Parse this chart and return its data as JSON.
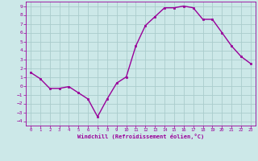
{
  "x": [
    0,
    1,
    2,
    3,
    4,
    5,
    6,
    7,
    8,
    9,
    10,
    11,
    12,
    13,
    14,
    15,
    16,
    17,
    18,
    19,
    20,
    21,
    22,
    23
  ],
  "y": [
    1.5,
    0.8,
    -0.3,
    -0.3,
    -0.1,
    -0.8,
    -1.5,
    -3.5,
    -1.5,
    0.3,
    1.0,
    4.5,
    6.8,
    7.8,
    8.8,
    8.8,
    9.0,
    8.8,
    7.5,
    7.5,
    6.0,
    4.5,
    3.3,
    2.5
  ],
  "line_color": "#990099",
  "marker_color": "#990099",
  "bg_color": "#cce8e8",
  "grid_color": "#aacccc",
  "xlabel": "Windchill (Refroidissement éolien,°C)",
  "xlabel_color": "#990099",
  "tick_color": "#990099",
  "spine_color": "#990099",
  "xlim": [
    -0.5,
    23.5
  ],
  "ylim": [
    -4.5,
    9.5
  ],
  "yticks": [
    -4,
    -3,
    -2,
    -1,
    0,
    1,
    2,
    3,
    4,
    5,
    6,
    7,
    8,
    9
  ],
  "xticks": [
    0,
    1,
    2,
    3,
    4,
    5,
    6,
    7,
    8,
    9,
    10,
    11,
    12,
    13,
    14,
    15,
    16,
    17,
    18,
    19,
    20,
    21,
    22,
    23
  ]
}
